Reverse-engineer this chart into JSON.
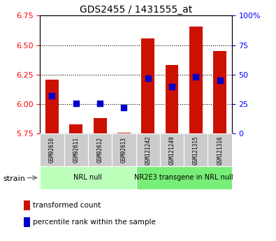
{
  "title": "GDS2455 / 1431555_at",
  "samples": [
    "GSM92610",
    "GSM92611",
    "GSM92612",
    "GSM92613",
    "GSM121242",
    "GSM121249",
    "GSM121315",
    "GSM121316"
  ],
  "transformed_counts": [
    6.21,
    5.83,
    5.88,
    5.76,
    6.56,
    6.33,
    6.66,
    6.45
  ],
  "percentile_ranks": [
    32,
    26,
    26,
    22,
    47,
    40,
    48,
    45
  ],
  "ylim_left": [
    5.75,
    6.75
  ],
  "ylim_right": [
    0,
    100
  ],
  "yticks_left": [
    5.75,
    6.0,
    6.25,
    6.5,
    6.75
  ],
  "yticks_right": [
    0,
    25,
    50,
    75,
    100
  ],
  "ytick_labels_right": [
    "0",
    "25",
    "50",
    "75",
    "100%"
  ],
  "bar_color": "#cc1100",
  "dot_color": "#0000cc",
  "bar_bottom": 5.75,
  "groups": [
    {
      "label": "NRL null",
      "start": 0,
      "end": 4,
      "color": "#bbffbb"
    },
    {
      "label": "NR2E3 transgene in NRL null",
      "start": 4,
      "end": 8,
      "color": "#77ee77"
    }
  ],
  "strain_label": "strain",
  "legend_items": [
    {
      "color": "#cc1100",
      "label": "transformed count"
    },
    {
      "color": "#0000cc",
      "label": "percentile rank within the sample"
    }
  ],
  "sample_bg_color": "#cccccc",
  "bar_width": 0.55,
  "dot_size": 28,
  "fig_width": 3.95,
  "fig_height": 3.45,
  "fig_dpi": 100
}
